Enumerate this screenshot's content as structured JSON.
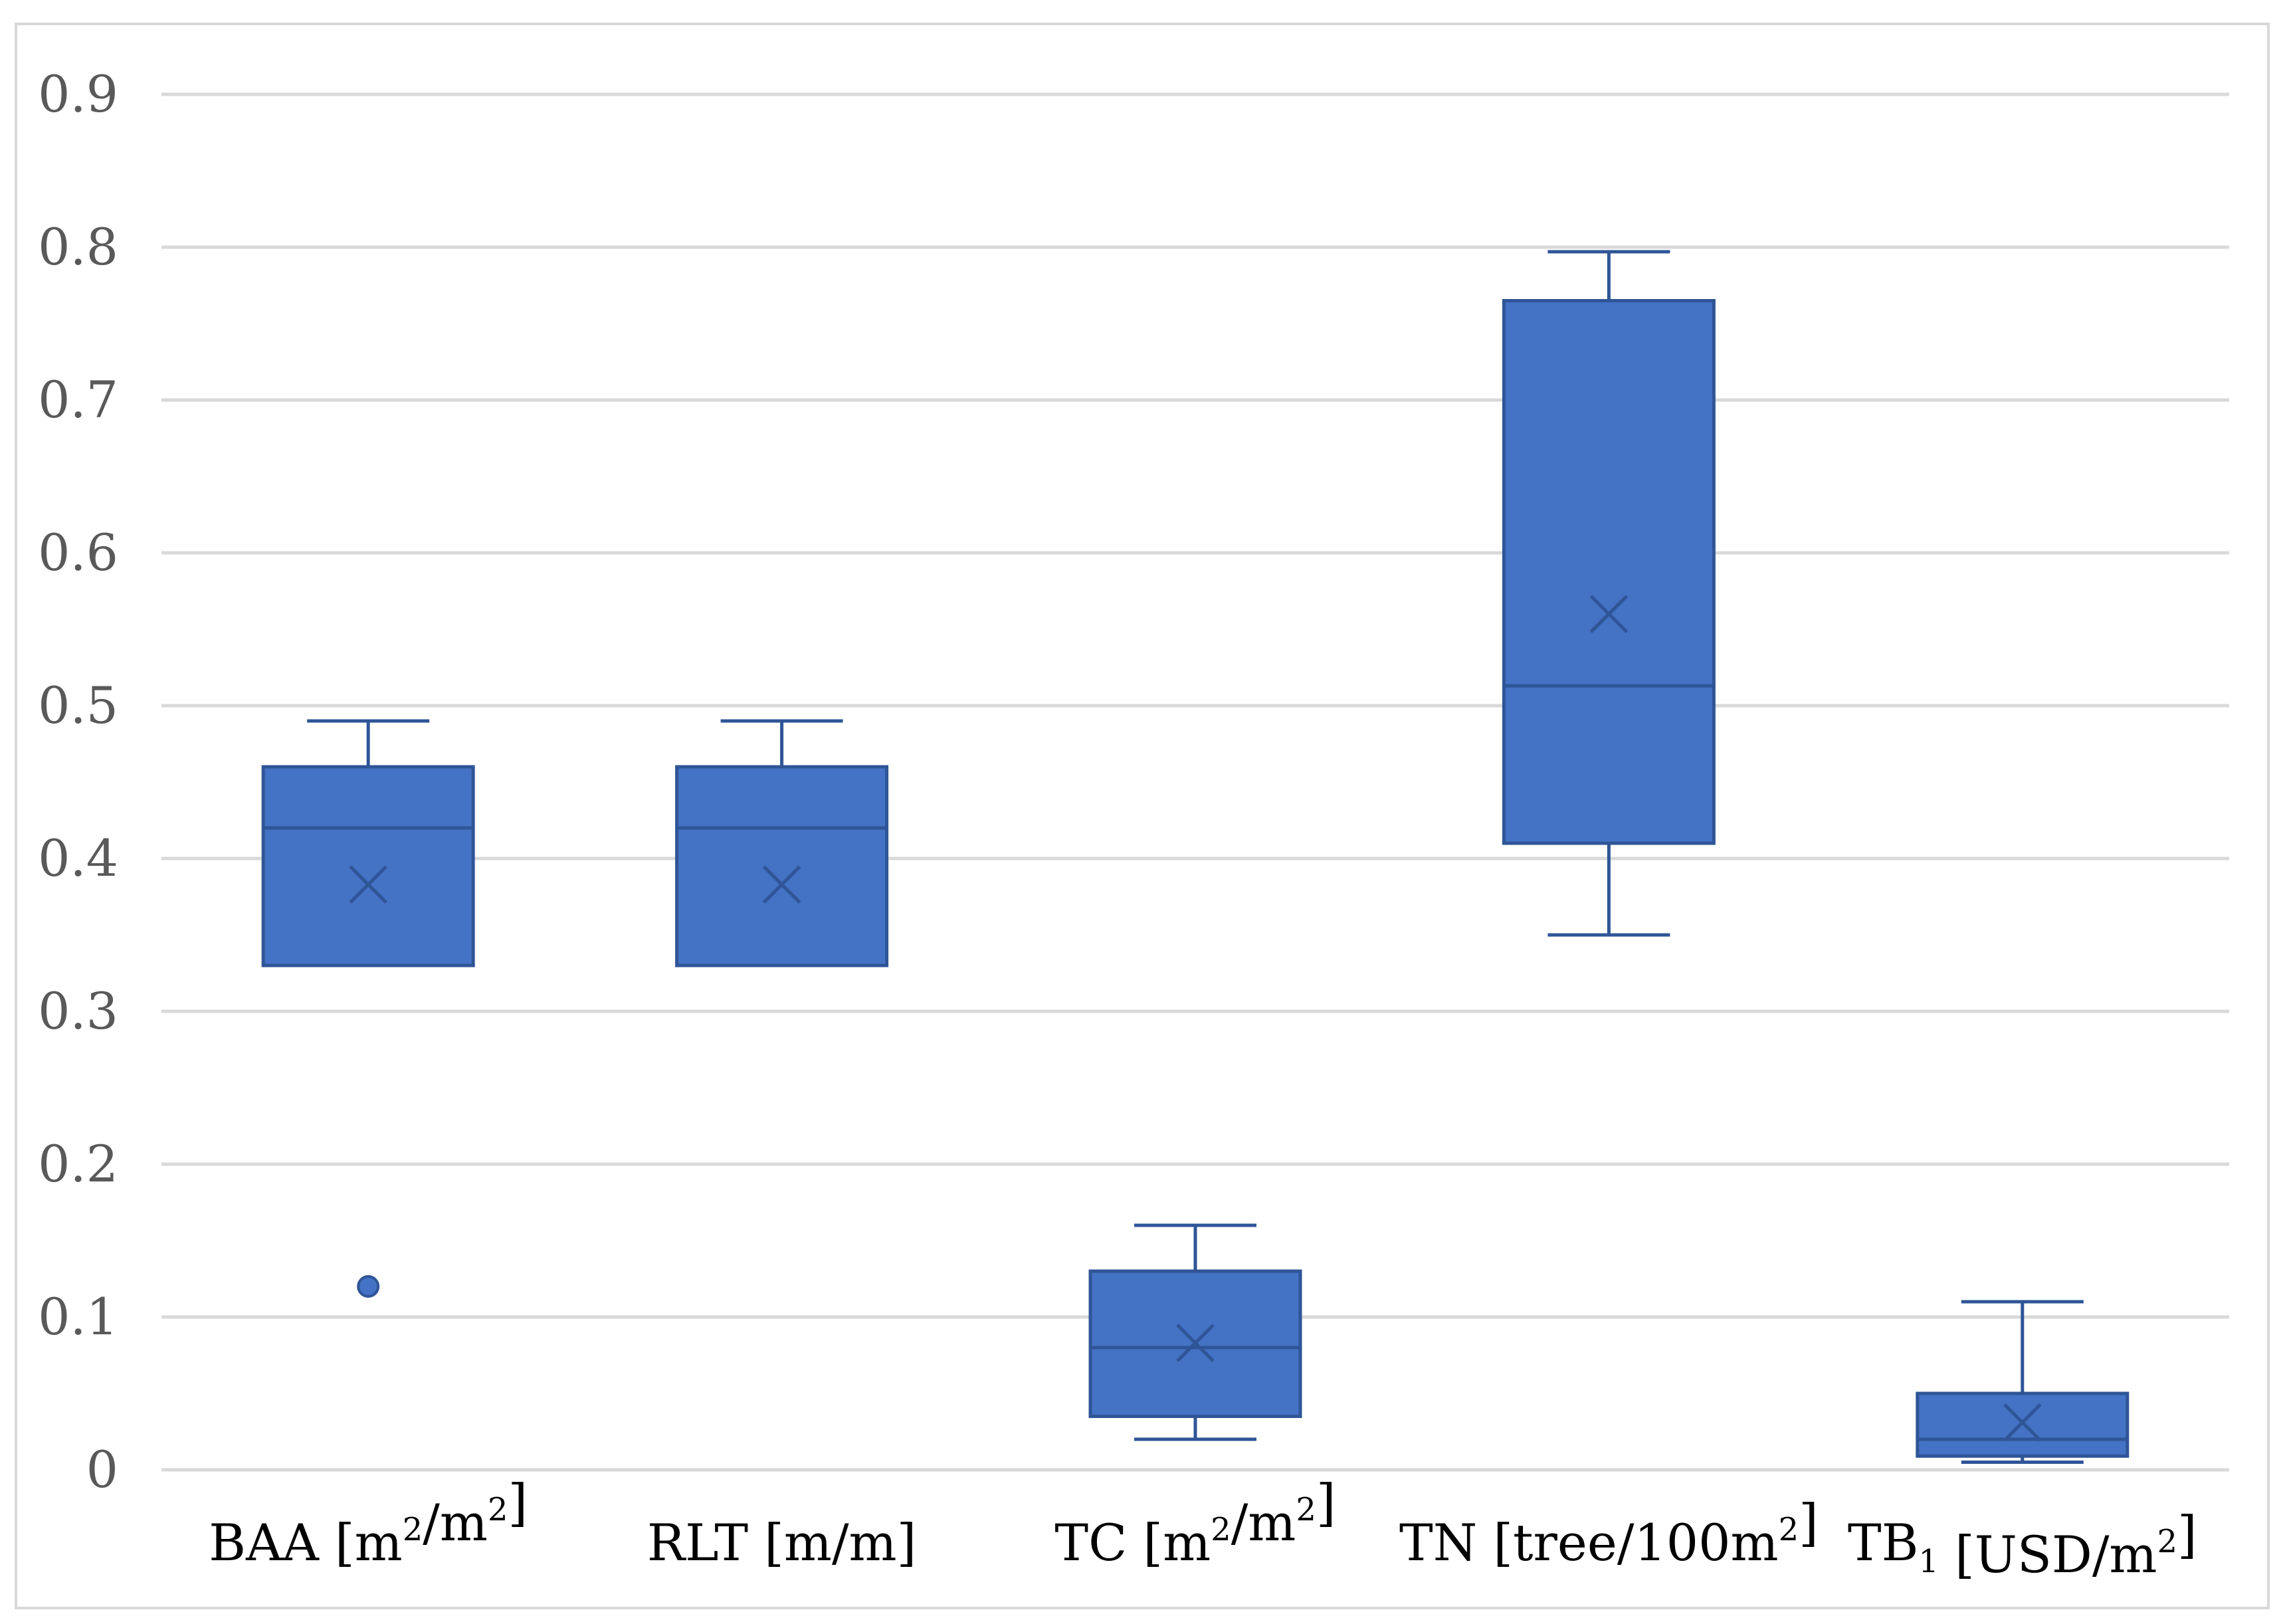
{
  "colors": {
    "box_fill": "#4472C4",
    "box_stroke": "#2F5597",
    "grid": "#d9d9d9",
    "axis_text": "#595959"
  },
  "chart_data": {
    "type": "box",
    "title": "",
    "xlabel": "",
    "ylabel": "",
    "ylim": [
      0,
      0.9
    ],
    "yticks": [
      "0",
      "0.1",
      "0.2",
      "0.3",
      "0.4",
      "0.5",
      "0.6",
      "0.7",
      "0.8",
      "0.9"
    ],
    "grid": true,
    "categories": [
      {
        "name": "BAA",
        "unit_pre": " [m",
        "sup1": "2",
        "mid": "/m",
        "sup2": "2",
        "unit_post": "]",
        "min": 0.33,
        "q1": 0.33,
        "median": 0.42,
        "q3": 0.46,
        "max": 0.49,
        "mean": 0.383,
        "outliers": [
          0.12
        ]
      },
      {
        "name": "RLT",
        "unit_pre": " [m/m]",
        "sup1": "",
        "mid": "",
        "sup2": "",
        "unit_post": "",
        "min": 0.33,
        "q1": 0.33,
        "median": 0.42,
        "q3": 0.46,
        "max": 0.49,
        "mean": 0.383,
        "outliers": []
      },
      {
        "name": "TC",
        "unit_pre": " [m",
        "sup1": "2",
        "mid": "/m",
        "sup2": "2",
        "unit_post": "]",
        "min": 0.02,
        "q1": 0.035,
        "median": 0.08,
        "q3": 0.13,
        "max": 0.16,
        "mean": 0.083,
        "outliers": []
      },
      {
        "name": "TN",
        "unit_pre": " [tree/100m",
        "sup1": "2",
        "mid": "",
        "sup2": "",
        "unit_post": "]",
        "min": 0.35,
        "q1": 0.41,
        "median": 0.513,
        "q3": 0.765,
        "max": 0.797,
        "mean": 0.56,
        "outliers": []
      },
      {
        "name": "TB",
        "sub": "1",
        "unit_pre": " [USD/m",
        "sup1": "2",
        "mid": "",
        "sup2": "",
        "unit_post": "]",
        "min": 0.005,
        "q1": 0.009,
        "median": 0.02,
        "q3": 0.05,
        "max": 0.11,
        "mean": 0.031,
        "outliers": []
      }
    ]
  }
}
